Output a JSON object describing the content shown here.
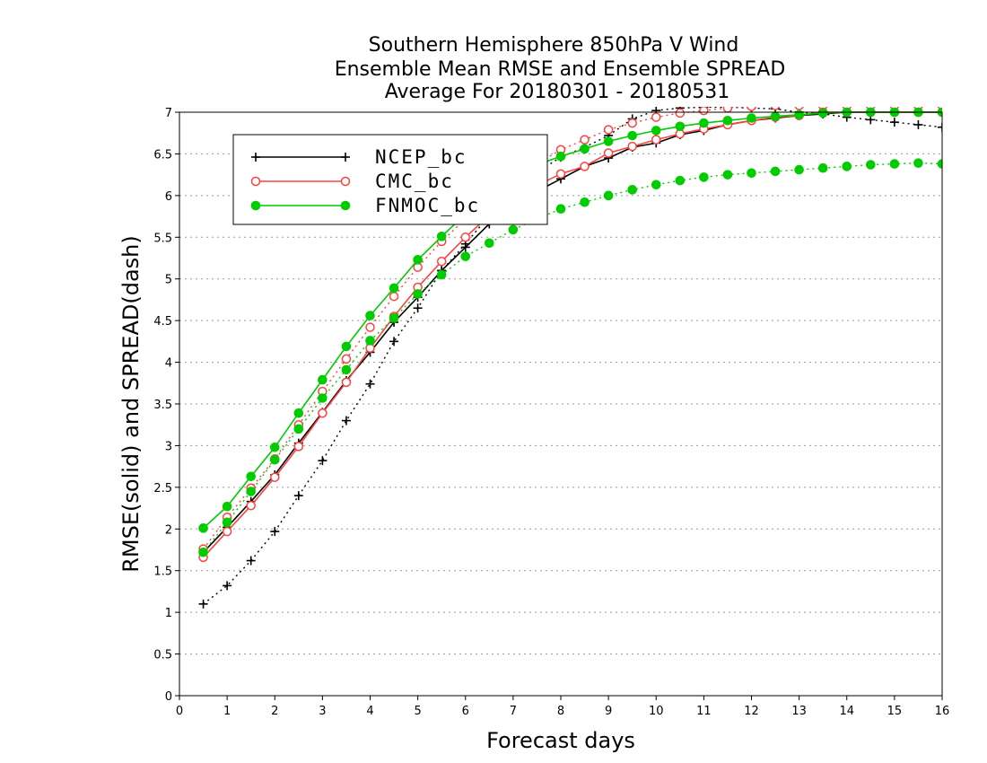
{
  "chart_data": {
    "type": "line",
    "title_lines": [
      "Southern Hemisphere 850hPa V Wind",
      "Ensemble Mean RMSE and Ensemble SPREAD",
      "Average For 20180301 - 20180531"
    ],
    "xlabel": "Forecast days",
    "ylabel": "RMSE(solid) and SPREAD(dash)",
    "xlim": [
      0,
      16
    ],
    "ylim": [
      0,
      7
    ],
    "xticks": [
      "0",
      "1",
      "2",
      "3",
      "4",
      "5",
      "6",
      "7",
      "8",
      "9",
      "10",
      "11",
      "12",
      "13",
      "14",
      "15",
      "16"
    ],
    "yticks": [
      "0",
      "0.5",
      "1",
      "1.5",
      "2",
      "2.5",
      "3",
      "3.5",
      "4",
      "4.5",
      "5",
      "5.5",
      "6",
      "6.5",
      "7"
    ],
    "grid": "horizontal dotted",
    "legend_position": "top-left",
    "x": [
      0.5,
      1,
      1.5,
      2,
      2.5,
      3,
      3.5,
      4,
      4.5,
      5,
      5.5,
      6,
      6.5,
      7,
      7.5,
      8,
      8.5,
      9,
      9.5,
      10,
      10.5,
      11,
      11.5,
      12,
      12.5,
      13,
      13.5,
      14,
      14.5,
      15,
      15.5,
      16
    ],
    "series": [
      {
        "name": "NCEP_bc",
        "color": "#000000",
        "marker": "plus",
        "rmse": [
          1.72,
          2.02,
          2.33,
          2.65,
          3.03,
          3.4,
          3.78,
          4.12,
          4.48,
          4.78,
          5.1,
          5.38,
          5.66,
          5.88,
          6.05,
          6.2,
          6.35,
          6.45,
          6.58,
          6.63,
          6.73,
          6.78,
          6.85,
          6.9,
          6.93,
          6.96,
          6.98,
          7.0,
          7.0,
          7.0,
          7.0,
          7.0
        ],
        "spread": [
          1.1,
          1.32,
          1.62,
          1.97,
          2.4,
          2.82,
          3.3,
          3.74,
          4.25,
          4.65,
          5.1,
          5.42,
          5.76,
          6.0,
          6.28,
          6.46,
          6.58,
          6.72,
          6.92,
          7.02,
          7.05,
          7.06,
          7.06,
          7.05,
          7.04,
          7.0,
          6.98,
          6.94,
          6.91,
          6.88,
          6.85,
          6.82
        ]
      },
      {
        "name": "CMC_bc",
        "color": "#ff4040",
        "marker": "open-circle",
        "rmse": [
          1.66,
          1.97,
          2.28,
          2.62,
          2.99,
          3.39,
          3.76,
          4.17,
          4.55,
          4.9,
          5.21,
          5.5,
          5.76,
          5.96,
          6.12,
          6.26,
          6.35,
          6.51,
          6.59,
          6.67,
          6.74,
          6.8,
          6.85,
          6.9,
          6.94,
          6.96,
          7.0,
          7.0,
          7.0,
          7.0,
          7.0,
          7.0
        ],
        "spread": [
          1.76,
          2.14,
          2.49,
          2.84,
          3.25,
          3.65,
          4.04,
          4.42,
          4.79,
          5.14,
          5.45,
          5.72,
          5.98,
          6.2,
          6.38,
          6.55,
          6.67,
          6.79,
          6.87,
          6.94,
          6.99,
          7.02,
          7.05,
          7.07,
          7.08,
          7.08,
          7.08,
          7.08,
          7.08,
          7.08,
          7.08,
          7.08
        ]
      },
      {
        "name": "FNMOC_bc",
        "color": "#00cc00",
        "marker": "filled-circle",
        "rmse": [
          2.01,
          2.27,
          2.63,
          2.98,
          3.39,
          3.79,
          4.19,
          4.56,
          4.89,
          5.23,
          5.51,
          5.78,
          6.02,
          6.22,
          6.37,
          6.47,
          6.56,
          6.65,
          6.72,
          6.78,
          6.83,
          6.87,
          6.9,
          6.93,
          6.95,
          6.97,
          6.99,
          7.0,
          7.0,
          7.0,
          7.0,
          7.0
        ],
        "spread": [
          1.72,
          2.08,
          2.45,
          2.83,
          3.2,
          3.57,
          3.91,
          4.26,
          4.53,
          4.82,
          5.05,
          5.27,
          5.43,
          5.59,
          5.72,
          5.84,
          5.92,
          6.0,
          6.07,
          6.13,
          6.18,
          6.22,
          6.25,
          6.27,
          6.29,
          6.31,
          6.33,
          6.35,
          6.37,
          6.38,
          6.39,
          6.38
        ]
      }
    ]
  }
}
